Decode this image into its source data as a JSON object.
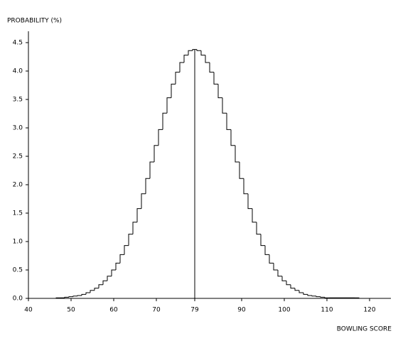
{
  "chart_data": {
    "type": "histogram",
    "y_label": "PROBABILITY (%)",
    "x_label": "BOWLING SCORE",
    "bins": [
      46.5,
      47.5,
      48.5,
      49.5,
      50.5,
      51.5,
      52.5,
      53.5,
      54.5,
      55.5,
      56.5,
      57.5,
      58.5,
      59.5,
      60.5,
      61.5,
      62.5,
      63.5,
      64.5,
      65.5,
      66.5,
      67.5,
      68.5,
      69.5,
      70.5,
      71.5,
      72.5,
      73.5,
      74.5,
      75.5,
      76.5,
      77.5,
      78.5,
      79.5,
      80.5,
      81.5,
      82.5,
      83.5,
      84.5,
      85.5,
      86.5,
      87.5,
      88.5,
      89.5,
      90.5,
      91.5,
      92.5,
      93.5,
      94.5,
      95.5,
      96.5,
      97.5,
      98.5,
      99.5,
      100.5,
      101.5,
      102.5,
      103.5,
      104.5,
      105.5,
      106.5,
      107.5,
      108.5,
      109.5,
      110.5,
      111.5,
      112.5,
      113.5,
      114.5,
      115.5,
      116.5,
      117.5
    ],
    "values": [
      0.01,
      0.01,
      0.02,
      0.03,
      0.04,
      0.05,
      0.07,
      0.1,
      0.14,
      0.18,
      0.24,
      0.31,
      0.39,
      0.5,
      0.62,
      0.77,
      0.93,
      1.13,
      1.34,
      1.58,
      1.84,
      2.11,
      2.4,
      2.69,
      2.97,
      3.26,
      3.53,
      3.77,
      3.98,
      4.15,
      4.28,
      4.36,
      4.38,
      4.36,
      4.28,
      4.15,
      3.98,
      3.77,
      3.53,
      3.26,
      2.97,
      2.69,
      2.4,
      2.11,
      1.84,
      1.58,
      1.34,
      1.13,
      0.93,
      0.77,
      0.62,
      0.5,
      0.39,
      0.31,
      0.24,
      0.18,
      0.14,
      0.1,
      0.07,
      0.05,
      0.04,
      0.03,
      0.02,
      0.01,
      0.01,
      0.01,
      0.01,
      0.01,
      0.01,
      0.01,
      0.01
    ],
    "color": "#000000",
    "mean": 79,
    "xlim": [
      40,
      125
    ],
    "xticks": [
      40,
      50,
      60,
      70,
      79,
      90,
      100,
      110,
      120
    ],
    "ylim": [
      0,
      4.7
    ],
    "yticks": [
      {
        "value": 0,
        "label": "0.0"
      },
      0.5,
      {
        "value": 1,
        "label": "1.0"
      },
      1.5,
      {
        "value": 2,
        "label": "2.0"
      },
      2.5,
      {
        "value": 3,
        "label": "3.0"
      },
      3.5,
      {
        "value": 4,
        "label": "4.0"
      },
      4.5
    ],
    "grid": false
  }
}
